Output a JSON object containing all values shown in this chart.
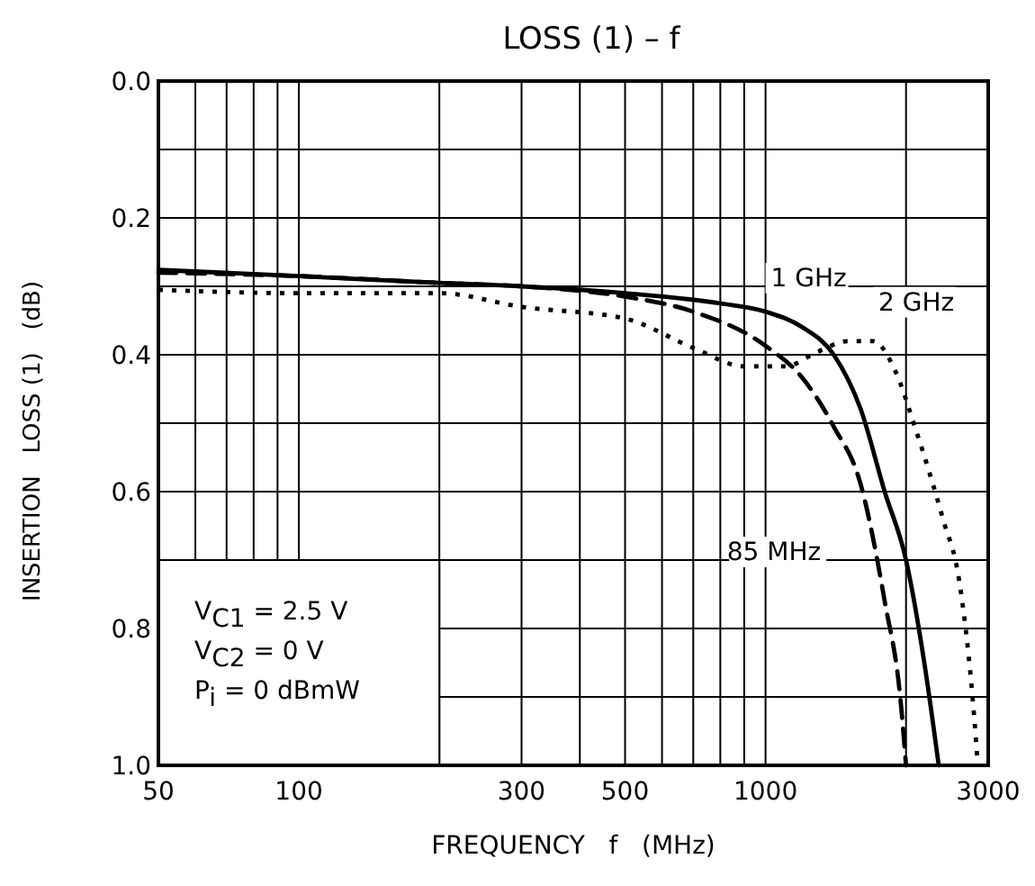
{
  "chart_data": {
    "type": "line",
    "title": "LOSS (1) – f",
    "xlabel": "FREQUENCY   f   (MHz)",
    "ylabel": "INSERTION   LOSS (1)   (dB)",
    "log": "x",
    "grid": true,
    "xlim": [
      50,
      3000
    ],
    "ylim": [
      1.0,
      0.0
    ],
    "xticks": [
      50,
      {
        "value": 60,
        "label": null
      },
      {
        "value": 70,
        "label": null
      },
      {
        "value": 80,
        "label": null
      },
      {
        "value": 90,
        "label": null
      },
      100,
      {
        "value": 200,
        "label": null
      },
      300,
      {
        "value": 400,
        "label": null
      },
      500,
      {
        "value": 600,
        "label": null
      },
      {
        "value": 700,
        "label": null
      },
      {
        "value": 800,
        "label": null
      },
      {
        "value": 900,
        "label": null
      },
      1000,
      {
        "value": 2000,
        "label": null
      },
      3000
    ],
    "yticks": [
      {
        "value": 0,
        "label": "0.0"
      },
      {
        "value": 0.1,
        "label": null
      },
      0.2,
      {
        "value": 0.3,
        "label": null
      },
      0.4,
      {
        "value": 0.5,
        "label": null
      },
      0.6,
      {
        "value": 0.7,
        "label": null
      },
      0.8,
      {
        "value": 0.9,
        "label": null
      },
      {
        "value": 1,
        "label": "1.0"
      }
    ],
    "series": [
      {
        "name": "1 GHz",
        "color": "#000000",
        "line_style": "solid",
        "x": [
          50,
          100,
          200,
          300,
          500,
          800,
          1000,
          1200,
          1400,
          1600,
          1800,
          2000,
          2200,
          2350
        ],
        "values": [
          0.276,
          0.285,
          0.295,
          0.3,
          0.31,
          0.325,
          0.337,
          0.36,
          0.4,
          0.48,
          0.6,
          0.7,
          0.86,
          1.0
        ]
      },
      {
        "name": "85 MHz",
        "color": "#000000",
        "line_style": "dashed",
        "x": [
          50,
          100,
          200,
          300,
          500,
          700,
          1000,
          1200,
          1400,
          1600,
          1800,
          1950,
          2000
        ],
        "values": [
          0.28,
          0.285,
          0.295,
          0.3,
          0.315,
          0.337,
          0.387,
          0.434,
          0.505,
          0.59,
          0.76,
          0.91,
          1.0
        ]
      },
      {
        "name": "2 GHz",
        "color": "#000000",
        "line_style": "dotted",
        "x": [
          50,
          100,
          200,
          300,
          500,
          700,
          900,
          1100,
          1300,
          1500,
          1700,
          1900,
          2100,
          2400,
          2600,
          2800,
          2850
        ],
        "values": [
          0.305,
          0.31,
          0.31,
          0.33,
          0.347,
          0.39,
          0.417,
          0.417,
          0.395,
          0.38,
          0.38,
          0.425,
          0.51,
          0.64,
          0.73,
          0.93,
          1.0
        ]
      }
    ],
    "annotations": [
      "V$_{C1}$ = 2.5 V",
      "V$_{C2}$ = 0 V",
      "P$_{i}$ = 0 dBmW"
    ]
  }
}
